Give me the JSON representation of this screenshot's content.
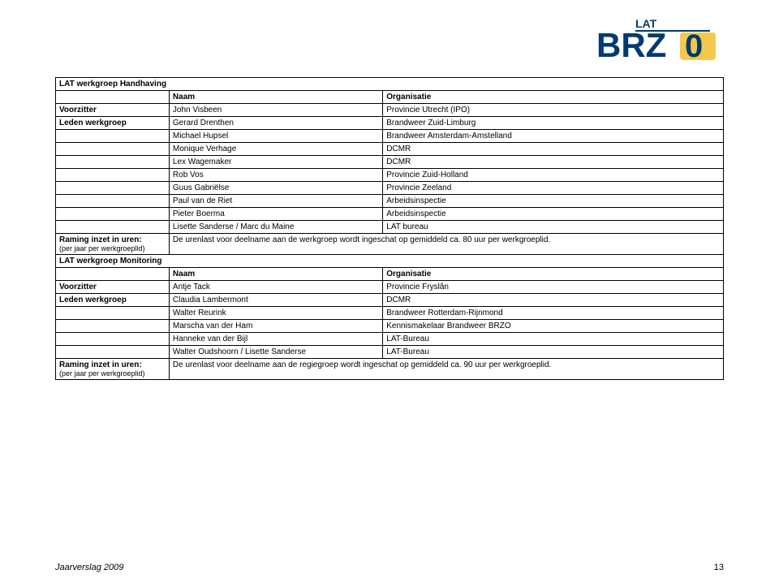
{
  "logo": {
    "top_text": "LAT",
    "main_text": "BRZ",
    "accent_text": "0",
    "primary_color": "#003a70",
    "accent_color": "#f2c94c"
  },
  "table1": {
    "section_title": "LAT werkgroep Handhaving",
    "header_col1": "Naam",
    "header_col2": "Organisatie",
    "chair_label": "Voorzitter",
    "members_label": "Leden werkgroep",
    "chair_name": "John Visbeen",
    "chair_org": "Provincie Utrecht (IPO)",
    "rows": [
      {
        "name": "Gerard Drenthen",
        "org": "Brandweer Zuid-Limburg"
      },
      {
        "name": "Michael Hupsel",
        "org": "Brandweer Amsterdam-Amstelland"
      },
      {
        "name": "Monique Verhage",
        "org": "DCMR"
      },
      {
        "name": "Lex Wagemaker",
        "org": "DCMR"
      },
      {
        "name": "Rob Vos",
        "org": "Provincie Zuid-Holland"
      },
      {
        "name": "Guus Gabriëlse",
        "org": "Provincie Zeeland"
      },
      {
        "name": "Paul van de Riet",
        "org": "Arbeidsinspectie"
      },
      {
        "name": "Pieter Boerma",
        "org": "Arbeidsinspectie"
      },
      {
        "name": "Lisette Sanderse / Marc du Maine",
        "org": "LAT bureau"
      }
    ],
    "hours_label": "Raming inzet in uren:",
    "hours_sub": "(per jaar per werkgroeplid)",
    "hours_text": "De urenlast voor deelname aan de werkgroep wordt ingeschat op gemiddeld ca. 80 uur per werkgroeplid."
  },
  "table2": {
    "section_title": "LAT werkgroep Monitoring",
    "header_col1": "Naam",
    "header_col2": "Organisatie",
    "chair_label": "Voorzitter",
    "members_label": "Leden werkgroep",
    "chair_name": "Antje Tack",
    "chair_org": "Provincie Fryslân",
    "rows": [
      {
        "name": "Claudia Lambermont",
        "org": "DCMR"
      },
      {
        "name": "Walter Reurink",
        "org": "Brandweer Rotterdam-Rijnmond"
      },
      {
        "name": "Marscha van der Ham",
        "org": "Kennismakelaar Brandweer BRZO"
      },
      {
        "name": "Hanneke van der Bijl",
        "org": "LAT-Bureau"
      },
      {
        "name": "Walter Oudshoorn / Lisette Sanderse",
        "org": "LAT-Bureau"
      }
    ],
    "hours_label": "Raming inzet in uren:",
    "hours_sub": "(per jaar per werkgroeplid)",
    "hours_text": "De urenlast voor deelname aan de regiegroep wordt ingeschat op gemiddeld ca. 90 uur per werkgroeplid."
  },
  "footer": {
    "left": "Jaarverslag 2009",
    "page": "13"
  },
  "layout": {
    "col_widths_pct": [
      17,
      32,
      51
    ]
  }
}
